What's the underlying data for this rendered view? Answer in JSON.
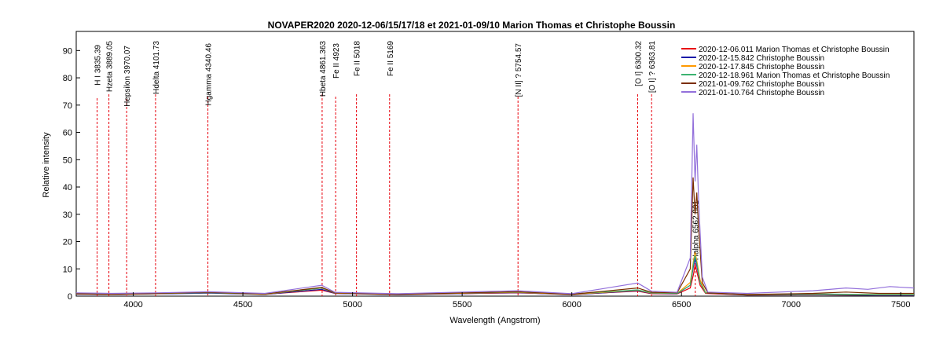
{
  "chart_data": {
    "type": "line",
    "title": "NOVAPER2020   2020-12-06/15/17/18 et 2021-01-09/10   Marion Thomas et Christophe Boussin",
    "xlabel": "Wavelength (Angstrom)",
    "ylabel": "Relative intensity",
    "xlim": [
      3740,
      7560
    ],
    "ylim": [
      0,
      97
    ],
    "xticks": [
      4000,
      4500,
      5000,
      5500,
      6000,
      6500,
      7000,
      7500
    ],
    "yticks": [
      0,
      10,
      20,
      30,
      40,
      50,
      60,
      70,
      80,
      90
    ],
    "grid": false,
    "legend_position": "top-right",
    "line_identifications": [
      {
        "label": "H I 3835.39",
        "wavelength": 3835.39
      },
      {
        "label": "Hzeta 3889.05",
        "wavelength": 3889.05
      },
      {
        "label": "Hepsilon 3970.07",
        "wavelength": 3970.07
      },
      {
        "label": "Hdelta 4101.73",
        "wavelength": 4101.73
      },
      {
        "label": "Hgamma 4340.46",
        "wavelength": 4340.46
      },
      {
        "label": "Hbeta 4861.363",
        "wavelength": 4861.363
      },
      {
        "label": "Fe II 4923",
        "wavelength": 4923
      },
      {
        "label": "Fe II 5018",
        "wavelength": 5018
      },
      {
        "label": "Fe II 5169",
        "wavelength": 5169
      },
      {
        "label": "[N II] ? 5754.57",
        "wavelength": 5754.57
      },
      {
        "label": "[O I] 6300.32",
        "wavelength": 6300.32
      },
      {
        "label": "[O I] ? 6363.81",
        "wavelength": 6363.81
      },
      {
        "label": "Halpha 6562.801",
        "wavelength": 6562.801
      }
    ],
    "series": [
      {
        "name": "2020-12-06.011  Marion Thomas et Christophe Boussin",
        "color": "#e8000b",
        "points": [
          [
            3740,
            0.8
          ],
          [
            3900,
            0.6
          ],
          [
            4100,
            0.9
          ],
          [
            4340,
            1.2
          ],
          [
            4600,
            0.7
          ],
          [
            4860,
            2.2
          ],
          [
            4920,
            1.0
          ],
          [
            5200,
            0.6
          ],
          [
            5750,
            1.2
          ],
          [
            6000,
            0.6
          ],
          [
            6300,
            1.8
          ],
          [
            6363,
            0.9
          ],
          [
            6480,
            0.8
          ],
          [
            6540,
            3
          ],
          [
            6555,
            8
          ],
          [
            6562,
            11.5
          ],
          [
            6570,
            9
          ],
          [
            6585,
            4
          ],
          [
            6610,
            1
          ],
          [
            6800,
            0.4
          ],
          [
            7100,
            0.5
          ],
          [
            7400,
            0.3
          ],
          [
            7560,
            0.3
          ]
        ]
      },
      {
        "name": "2020-12-15.842  Christophe Boussin",
        "color": "#1a1aa8",
        "points": [
          [
            3740,
            0.7
          ],
          [
            3900,
            0.6
          ],
          [
            4100,
            0.8
          ],
          [
            4340,
            1.1
          ],
          [
            4600,
            0.6
          ],
          [
            4860,
            2.5
          ],
          [
            4920,
            1.0
          ],
          [
            5200,
            0.5
          ],
          [
            5750,
            1.3
          ],
          [
            6000,
            0.5
          ],
          [
            6300,
            2.0
          ],
          [
            6363,
            1.0
          ],
          [
            6480,
            0.9
          ],
          [
            6540,
            4
          ],
          [
            6555,
            11
          ],
          [
            6562,
            13.5
          ],
          [
            6570,
            11
          ],
          [
            6585,
            5
          ],
          [
            6610,
            1.2
          ],
          [
            6800,
            0.4
          ],
          [
            7100,
            0.5
          ],
          [
            7400,
            0.3
          ],
          [
            7560,
            0.3
          ]
        ]
      },
      {
        "name": "2020-12-17.845  Christophe Boussin",
        "color": "#ff9900",
        "points": [
          [
            3740,
            0.8
          ],
          [
            3900,
            0.7
          ],
          [
            4100,
            0.9
          ],
          [
            4340,
            1.3
          ],
          [
            4600,
            0.7
          ],
          [
            4860,
            3.0
          ],
          [
            4920,
            1.1
          ],
          [
            5200,
            0.6
          ],
          [
            5750,
            1.4
          ],
          [
            6000,
            0.6
          ],
          [
            6300,
            2.2
          ],
          [
            6363,
            1.1
          ],
          [
            6480,
            1.0
          ],
          [
            6540,
            5
          ],
          [
            6555,
            13
          ],
          [
            6562,
            16
          ],
          [
            6570,
            13
          ],
          [
            6585,
            6
          ],
          [
            6610,
            1.3
          ],
          [
            6800,
            0.5
          ],
          [
            7100,
            0.7
          ],
          [
            7400,
            0.5
          ],
          [
            7560,
            0.5
          ]
        ]
      },
      {
        "name": "2020-12-18.961  Marion Thomas et Christophe Boussin",
        "color": "#3cb371",
        "points": [
          [
            3740,
            1.0
          ],
          [
            3900,
            0.8
          ],
          [
            4100,
            1.0
          ],
          [
            4340,
            1.3
          ],
          [
            4600,
            0.8
          ],
          [
            4860,
            3.0
          ],
          [
            4920,
            1.2
          ],
          [
            5200,
            0.8
          ],
          [
            5750,
            1.5
          ],
          [
            6000,
            0.8
          ],
          [
            6300,
            2.3
          ],
          [
            6363,
            1.2
          ],
          [
            6480,
            1.0
          ],
          [
            6540,
            4
          ],
          [
            6555,
            12
          ],
          [
            6562,
            15
          ],
          [
            6570,
            12
          ],
          [
            6585,
            5
          ],
          [
            6610,
            1.2
          ],
          [
            6800,
            0.6
          ],
          [
            7100,
            0.8
          ],
          [
            7400,
            0.6
          ],
          [
            7560,
            0.6
          ]
        ]
      },
      {
        "name": "2021-01-09.762  Christophe Boussin",
        "color": "#7b2d00",
        "points": [
          [
            3740,
            0.9
          ],
          [
            3900,
            0.7
          ],
          [
            4100,
            1.0
          ],
          [
            4340,
            1.4
          ],
          [
            4600,
            0.8
          ],
          [
            4860,
            3.2
          ],
          [
            4920,
            1.2
          ],
          [
            5200,
            0.7
          ],
          [
            5750,
            1.6
          ],
          [
            6000,
            0.7
          ],
          [
            6300,
            3.0
          ],
          [
            6363,
            1.4
          ],
          [
            6480,
            1.2
          ],
          [
            6540,
            10
          ],
          [
            6553,
            43.5
          ],
          [
            6562,
            30
          ],
          [
            6570,
            38
          ],
          [
            6578,
            25
          ],
          [
            6595,
            5
          ],
          [
            6620,
            1.2
          ],
          [
            6800,
            0.6
          ],
          [
            7100,
            1.0
          ],
          [
            7250,
            1.5
          ],
          [
            7400,
            1.0
          ],
          [
            7560,
            1.0
          ]
        ]
      },
      {
        "name": "2021-01-10.764  Christophe Boussin",
        "color": "#9370db",
        "points": [
          [
            3740,
            1.2
          ],
          [
            3900,
            1.0
          ],
          [
            4100,
            1.2
          ],
          [
            4340,
            1.6
          ],
          [
            4600,
            1.0
          ],
          [
            4860,
            4.0
          ],
          [
            4920,
            1.4
          ],
          [
            5200,
            0.9
          ],
          [
            5750,
            2.0
          ],
          [
            6000,
            0.9
          ],
          [
            6300,
            4.8
          ],
          [
            6363,
            1.8
          ],
          [
            6480,
            1.4
          ],
          [
            6540,
            14
          ],
          [
            6553,
            67
          ],
          [
            6562,
            42
          ],
          [
            6570,
            55.5
          ],
          [
            6578,
            35
          ],
          [
            6595,
            7
          ],
          [
            6620,
            1.5
          ],
          [
            6800,
            1.0
          ],
          [
            7100,
            2.0
          ],
          [
            7250,
            3.0
          ],
          [
            7350,
            2.5
          ],
          [
            7450,
            3.5
          ],
          [
            7560,
            3.0
          ]
        ]
      }
    ]
  }
}
